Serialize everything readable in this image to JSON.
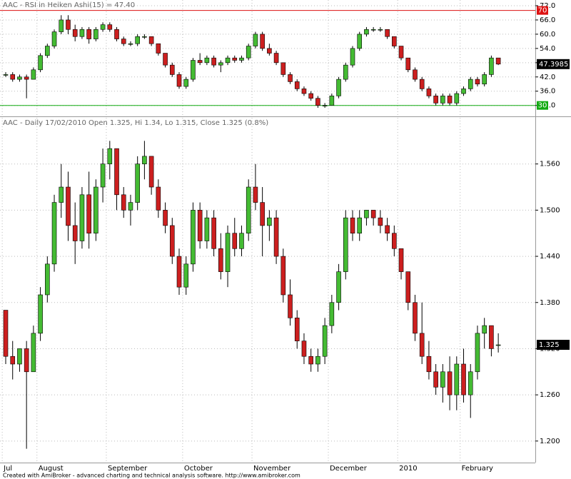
{
  "chart_data": [
    {
      "type": "candlestick",
      "title": "AAC - RSI in Heiken Ashi(15) = 47.40",
      "ylim": [
        25.7,
        74.4
      ],
      "yticks": [
        {
          "value": 30,
          "label": "30.0"
        },
        {
          "value": 36,
          "label": "36.0"
        },
        {
          "value": 42,
          "label": "42.0"
        },
        {
          "value": 48,
          "label": "48.0"
        },
        {
          "value": 54,
          "label": "54.0"
        },
        {
          "value": 60,
          "label": "60.0"
        },
        {
          "value": 66,
          "label": "66.0"
        },
        {
          "value": 72,
          "label": "72.0"
        }
      ],
      "grid": true,
      "up_color": "#44bb33",
      "down_color": "#cc1f1f",
      "hlines": [
        {
          "value": 70,
          "color": "#dd1111"
        },
        {
          "value": 30,
          "color": "#11aa11"
        }
      ],
      "last_value": 47.3985,
      "open": [
        43,
        43,
        41,
        42,
        41,
        45,
        51,
        55,
        61,
        66,
        62,
        59,
        62,
        58,
        62,
        64,
        62,
        58,
        56,
        56,
        59,
        59,
        56,
        52,
        47,
        43,
        38,
        41,
        49,
        48,
        50,
        47,
        48,
        50,
        49,
        50,
        55,
        60,
        54,
        52,
        48,
        43,
        40,
        37,
        35,
        33,
        30,
        30,
        34,
        41,
        47,
        54,
        60,
        62,
        62,
        62,
        59,
        55,
        50,
        45,
        41,
        37,
        34,
        31,
        34,
        31,
        35,
        37,
        41,
        39,
        43,
        50
      ],
      "high": [
        44,
        44,
        43,
        43,
        46,
        52,
        56,
        62,
        68,
        68,
        64,
        63,
        63,
        63,
        65,
        65,
        63,
        59,
        57,
        60,
        60,
        59,
        56,
        52,
        48,
        44,
        42,
        50,
        52,
        51,
        51,
        49,
        51,
        51,
        51,
        56,
        61,
        61,
        56,
        53,
        48,
        44,
        41,
        38,
        36,
        34,
        31,
        35,
        42,
        48,
        55,
        61,
        63,
        63,
        63,
        62,
        59,
        55,
        50,
        46,
        42,
        38,
        35,
        35,
        35,
        36,
        38,
        42,
        42,
        44,
        51,
        50
      ],
      "low": [
        42,
        40,
        40,
        33,
        41,
        44,
        50,
        54,
        60,
        60,
        57,
        58,
        56,
        57,
        61,
        61,
        57,
        55,
        55,
        55,
        58,
        55,
        51,
        46,
        42,
        37,
        37,
        40,
        47,
        47,
        46,
        44,
        47,
        48,
        48,
        49,
        54,
        53,
        51,
        47,
        42,
        39,
        36,
        34,
        32,
        29,
        29,
        30,
        33,
        40,
        46,
        53,
        59,
        61,
        61,
        58,
        54,
        49,
        44,
        40,
        36,
        33,
        30,
        30,
        30,
        30,
        34,
        36,
        38,
        38,
        42,
        47
      ],
      "close": [
        43,
        41,
        42,
        41,
        45,
        51,
        55,
        61,
        66,
        62,
        59,
        62,
        58,
        62,
        64,
        62,
        58,
        56,
        56,
        59,
        59,
        56,
        52,
        47,
        43,
        38,
        41,
        49,
        48,
        50,
        47,
        48,
        50,
        49,
        50,
        55,
        60,
        54,
        52,
        48,
        43,
        40,
        37,
        35,
        33,
        30,
        30,
        34,
        41,
        47,
        54,
        60,
        62,
        62,
        62,
        59,
        55,
        50,
        45,
        41,
        37,
        34,
        31,
        34,
        31,
        35,
        37,
        41,
        39,
        43,
        50,
        47.4
      ]
    },
    {
      "type": "candlestick",
      "title": "AAC - Daily 17/02/2010 Open 1.325, Hi 1.34, Lo 1.315, Close 1.325 (0.8%)",
      "ylim": [
        1.172,
        1.62
      ],
      "yticks": [
        {
          "value": 1.2,
          "label": "1.200"
        },
        {
          "value": 1.26,
          "label": "1.260"
        },
        {
          "value": 1.32,
          "label": "1.320"
        },
        {
          "value": 1.38,
          "label": "1.380"
        },
        {
          "value": 1.44,
          "label": "1.440"
        },
        {
          "value": 1.5,
          "label": "1.500"
        },
        {
          "value": 1.56,
          "label": "1.560"
        }
      ],
      "grid": true,
      "up_color": "#44bb33",
      "down_color": "#cc1f1f",
      "last_value": 1.325,
      "categories": [
        "Jul",
        null,
        null,
        null,
        null,
        "August",
        null,
        null,
        null,
        null,
        null,
        null,
        null,
        null,
        null,
        "September",
        null,
        null,
        null,
        null,
        null,
        null,
        null,
        null,
        null,
        null,
        "October",
        null,
        null,
        null,
        null,
        null,
        null,
        null,
        null,
        null,
        "November",
        null,
        null,
        null,
        null,
        null,
        null,
        null,
        null,
        null,
        null,
        "December",
        null,
        null,
        null,
        null,
        null,
        null,
        null,
        null,
        null,
        "2010",
        null,
        null,
        null,
        null,
        null,
        null,
        null,
        null,
        "February",
        null,
        null,
        null,
        null,
        null
      ],
      "open": [
        1.37,
        1.31,
        1.3,
        1.32,
        1.29,
        1.34,
        1.39,
        1.43,
        1.51,
        1.53,
        1.48,
        1.46,
        1.52,
        1.47,
        1.53,
        1.56,
        1.58,
        1.52,
        1.5,
        1.51,
        1.56,
        1.57,
        1.53,
        1.5,
        1.48,
        1.44,
        1.4,
        1.43,
        1.5,
        1.46,
        1.49,
        1.45,
        1.42,
        1.47,
        1.45,
        1.47,
        1.53,
        1.51,
        1.48,
        1.49,
        1.44,
        1.39,
        1.36,
        1.33,
        1.31,
        1.3,
        1.31,
        1.35,
        1.38,
        1.42,
        1.49,
        1.47,
        1.49,
        1.5,
        1.49,
        1.48,
        1.47,
        1.45,
        1.42,
        1.38,
        1.34,
        1.31,
        1.29,
        1.27,
        1.29,
        1.26,
        1.3,
        1.26,
        1.29,
        1.34,
        1.35,
        1.325
      ],
      "high": [
        1.37,
        1.33,
        1.32,
        1.33,
        1.35,
        1.4,
        1.44,
        1.52,
        1.56,
        1.55,
        1.51,
        1.53,
        1.55,
        1.54,
        1.58,
        1.59,
        1.58,
        1.53,
        1.52,
        1.57,
        1.59,
        1.57,
        1.54,
        1.51,
        1.49,
        1.45,
        1.44,
        1.51,
        1.51,
        1.5,
        1.5,
        1.47,
        1.48,
        1.49,
        1.48,
        1.54,
        1.56,
        1.53,
        1.5,
        1.5,
        1.45,
        1.41,
        1.37,
        1.34,
        1.32,
        1.32,
        1.36,
        1.39,
        1.43,
        1.5,
        1.5,
        1.5,
        1.5,
        1.5,
        1.5,
        1.49,
        1.48,
        1.45,
        1.42,
        1.39,
        1.38,
        1.33,
        1.3,
        1.3,
        1.31,
        1.31,
        1.32,
        1.3,
        1.35,
        1.36,
        1.35,
        1.34
      ],
      "low": [
        1.3,
        1.28,
        1.29,
        1.19,
        1.29,
        1.33,
        1.38,
        1.42,
        1.49,
        1.46,
        1.43,
        1.45,
        1.45,
        1.46,
        1.51,
        1.54,
        1.5,
        1.49,
        1.48,
        1.5,
        1.54,
        1.52,
        1.49,
        1.47,
        1.43,
        1.39,
        1.39,
        1.42,
        1.45,
        1.45,
        1.44,
        1.41,
        1.4,
        1.44,
        1.44,
        1.46,
        1.5,
        1.44,
        1.46,
        1.43,
        1.38,
        1.35,
        1.32,
        1.3,
        1.29,
        1.29,
        1.3,
        1.34,
        1.37,
        1.41,
        1.46,
        1.46,
        1.48,
        1.48,
        1.47,
        1.46,
        1.44,
        1.41,
        1.37,
        1.33,
        1.3,
        1.28,
        1.26,
        1.25,
        1.24,
        1.24,
        1.25,
        1.23,
        1.28,
        1.32,
        1.31,
        1.315
      ],
      "close": [
        1.31,
        1.3,
        1.32,
        1.29,
        1.34,
        1.39,
        1.43,
        1.51,
        1.53,
        1.48,
        1.46,
        1.52,
        1.47,
        1.53,
        1.56,
        1.58,
        1.52,
        1.5,
        1.51,
        1.56,
        1.57,
        1.53,
        1.5,
        1.48,
        1.44,
        1.4,
        1.43,
        1.5,
        1.46,
        1.49,
        1.45,
        1.42,
        1.47,
        1.45,
        1.47,
        1.53,
        1.51,
        1.48,
        1.49,
        1.44,
        1.39,
        1.36,
        1.33,
        1.31,
        1.3,
        1.31,
        1.35,
        1.38,
        1.42,
        1.49,
        1.47,
        1.49,
        1.5,
        1.49,
        1.48,
        1.47,
        1.45,
        1.42,
        1.38,
        1.34,
        1.31,
        1.29,
        1.27,
        1.29,
        1.26,
        1.3,
        1.26,
        1.29,
        1.34,
        1.35,
        1.32,
        1.325
      ]
    }
  ],
  "footer": "Created with AmiBroker - advanced charting and technical analysis software. http://www.amibroker.com"
}
